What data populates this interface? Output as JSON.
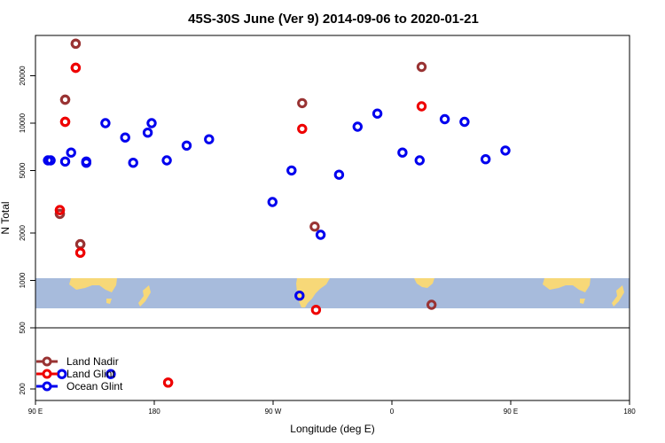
{
  "chart_data": {
    "type": "scatter",
    "title": "45S-30S June (Ver 9)   2014-09-06 to 2020-01-21",
    "xlabel": "Longitude (deg E)",
    "ylabel": "N Total",
    "y_scale": "log",
    "ylim": [
      180,
      35000
    ],
    "x_ticks": [
      "90 E",
      "180",
      "90 W",
      "0",
      "90 E",
      "180"
    ],
    "y_ticks_upper": [
      "1000",
      "2000",
      "5000",
      "10000",
      "20000"
    ],
    "y_ticks_lower": [
      "200",
      "500"
    ],
    "inset_map": "world map strip spanning the longitude range, blue ocean with yellow land",
    "legend_position": "bottom-left",
    "series": [
      {
        "name": "Land Nadir",
        "color": "#993333",
        "points": [
          [
            108.5,
            2650
          ],
          [
            112.5,
            14100
          ],
          [
            120.5,
            32000
          ],
          [
            124,
            1700
          ],
          [
            -68,
            13400
          ],
          [
            -58.5,
            2200
          ],
          [
            22.5,
            22800
          ],
          [
            30,
            700
          ],
          [
            108.5,
            2650
          ],
          [
            112.5,
            14100
          ],
          [
            120.5,
            32000
          ],
          [
            124,
            1700
          ]
        ]
      },
      {
        "name": "Land Glint",
        "color": "#ee0000",
        "points": [
          [
            108.5,
            2800
          ],
          [
            112.5,
            10200
          ],
          [
            120.5,
            22500
          ],
          [
            124,
            1500
          ],
          [
            -68,
            9200
          ],
          [
            -57.5,
            650
          ],
          [
            22.5,
            12800
          ],
          [
            190.5,
            220
          ],
          [
            108.5,
            2800
          ],
          [
            112.5,
            10200
          ],
          [
            120.5,
            22500
          ],
          [
            124,
            1500
          ],
          [
            190.5,
            220
          ]
        ]
      },
      {
        "name": "Ocean Glint",
        "color": "#0000ee",
        "points": [
          [
            99.5,
            5800
          ],
          [
            112.5,
            5700
          ],
          [
            128.5,
            5600
          ],
          [
            143,
            10000
          ],
          [
            158,
            8100
          ],
          [
            175,
            8700
          ],
          [
            189.5,
            5800
          ],
          [
            204.5,
            7200
          ],
          [
            221.5,
            7900
          ],
          [
            -90.5,
            3150
          ],
          [
            -76,
            5000
          ],
          [
            -70,
            800
          ],
          [
            -54,
            1950
          ],
          [
            -40,
            4700
          ],
          [
            -26,
            9500
          ],
          [
            -11,
            11500
          ],
          [
            8,
            6500
          ],
          [
            21,
            5800
          ],
          [
            40,
            10600
          ],
          [
            55,
            10200
          ],
          [
            71,
            5900
          ],
          [
            86,
            6700
          ],
          [
            101.5,
            5800
          ],
          [
            110,
            250
          ],
          [
            117,
            6500
          ],
          [
            128.5,
            5700
          ],
          [
            147,
            250
          ],
          [
            164,
            5600
          ],
          [
            178,
            10000
          ]
        ]
      }
    ]
  }
}
